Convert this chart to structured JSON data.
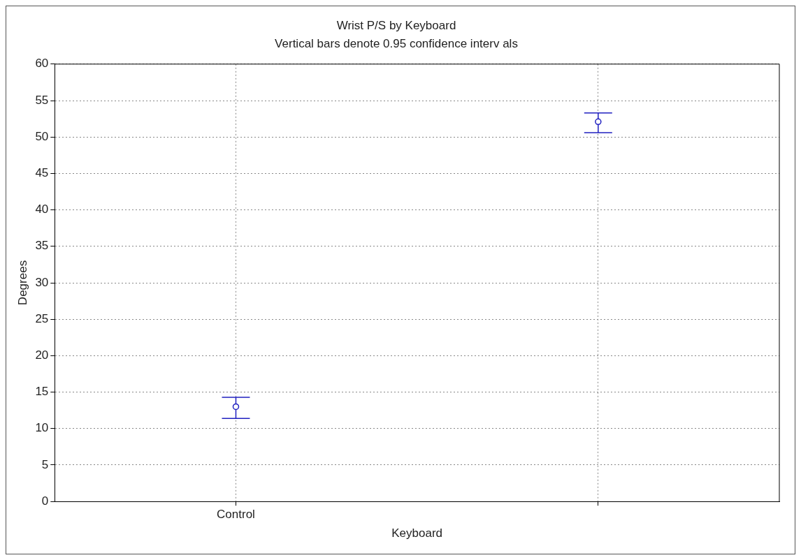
{
  "chart_data": {
    "type": "scatter",
    "title": "Wrist P/S by Keyboard",
    "subtitle": "Vertical bars denote 0.95 confidence interv als",
    "xlabel": "Keyboard",
    "ylabel": "Degrees",
    "categories": [
      "Control",
      null
    ],
    "color": "#2020c0",
    "values": [
      13.0,
      52.1
    ],
    "errors": [
      [
        11.4,
        14.3
      ],
      [
        50.6,
        53.3
      ]
    ],
    "ylim": [
      0,
      60
    ],
    "yticks": [
      0,
      5,
      10,
      15,
      20,
      25,
      30,
      35,
      40,
      45,
      50,
      55,
      60
    ],
    "grid": true,
    "legend": false,
    "marker": "circle"
  }
}
